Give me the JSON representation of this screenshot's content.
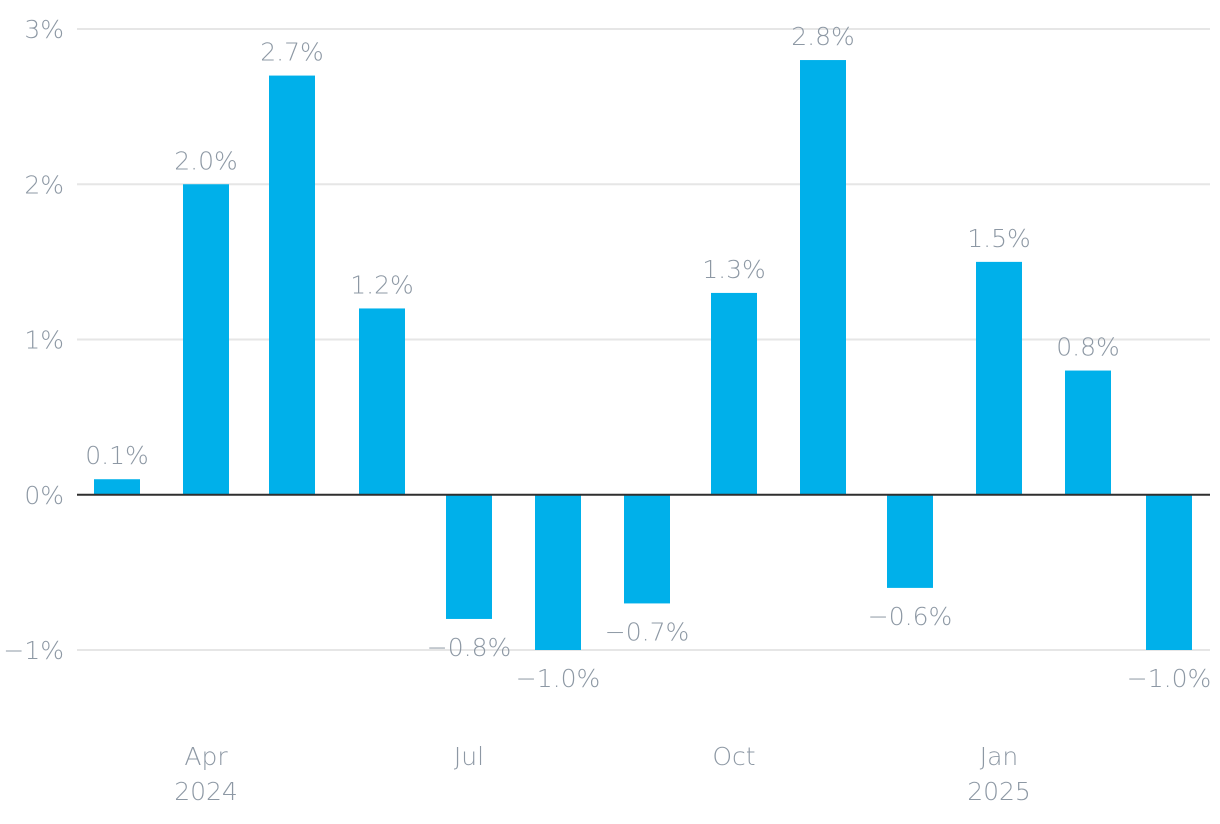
{
  "chart_data": {
    "type": "bar",
    "categories": [
      "2024-03",
      "2024-04",
      "2024-05",
      "2024-06",
      "2024-07",
      "2024-08",
      "2024-09",
      "2024-10",
      "2024-11",
      "2024-12",
      "2025-01",
      "2025-02",
      "2025-03"
    ],
    "values": [
      0.1,
      2.0,
      2.7,
      1.2,
      -0.8,
      -1.0,
      -0.7,
      1.3,
      2.8,
      -0.6,
      1.5,
      0.8,
      -1.0
    ],
    "data_labels": [
      "0.1%",
      "2.0%",
      "2.7%",
      "1.2%",
      "−0.8%",
      "−1.0%",
      "−0.7%",
      "1.3%",
      "2.8%",
      "−0.6%",
      "1.5%",
      "0.8%",
      "−1.0%"
    ],
    "title": "",
    "xlabel": "",
    "ylabel": "",
    "ylim": [
      -1,
      3
    ],
    "y_ticks": [
      3,
      2,
      1,
      0,
      -1
    ],
    "y_tick_labels": [
      "3%",
      "2%",
      "1%",
      "0%",
      "−1%"
    ],
    "x_tick_labels": [
      {
        "category_index": 1,
        "line1": "Apr",
        "line2": "2024"
      },
      {
        "category_index": 4,
        "line1": "Jul",
        "line2": ""
      },
      {
        "category_index": 7,
        "line1": "Oct",
        "line2": ""
      },
      {
        "category_index": 10,
        "line1": "Jan",
        "line2": "2025"
      }
    ],
    "grid": true,
    "legend": "none",
    "colors": {
      "bar": "#00b0ea",
      "grid": "#e6e6e6",
      "zero_line": "#2f2f2f",
      "text": "#8d98a4"
    }
  }
}
